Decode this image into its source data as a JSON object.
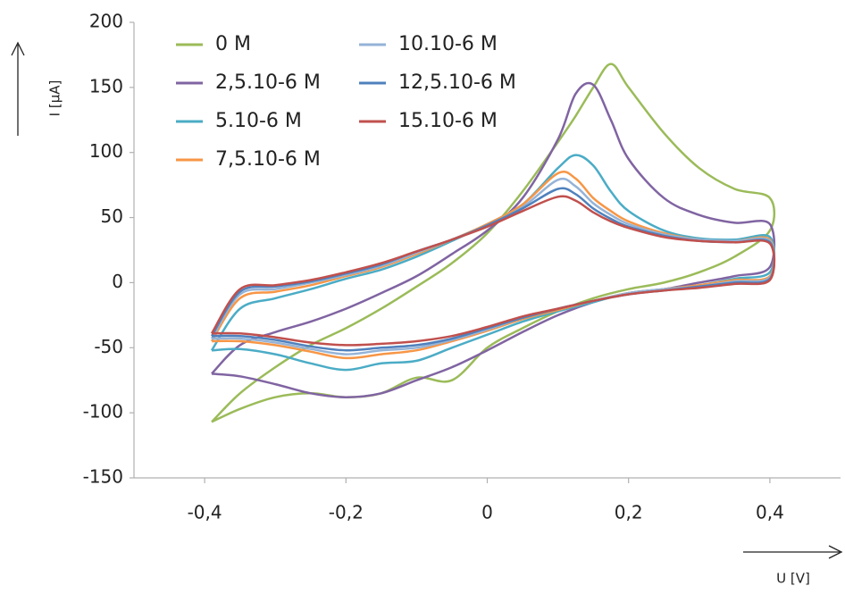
{
  "chart_data": {
    "type": "line",
    "x_label": "U [V]",
    "y_label": "I [μA]",
    "xlim": [
      -0.5,
      0.5
    ],
    "ylim": [
      -150,
      200
    ],
    "xticks": [
      {
        "value": -0.4,
        "label": "-0,4"
      },
      {
        "value": -0.2,
        "label": "-0,2"
      },
      0,
      {
        "value": 0.2,
        "label": "0,2"
      },
      {
        "value": 0.4,
        "label": "0,4"
      }
    ],
    "yticks": [
      -150,
      -100,
      -50,
      0,
      50,
      100,
      150,
      200
    ],
    "grid": false,
    "legend": "upper left",
    "x": [
      -0.39,
      -0.35,
      -0.3,
      -0.25,
      -0.2,
      -0.15,
      -0.1,
      -0.05,
      0,
      0.05,
      0.1,
      0.125,
      0.15,
      0.175,
      0.2,
      0.25,
      0.3,
      0.35,
      0.4,
      0.4,
      0.35,
      0.3,
      0.25,
      0.2,
      0.15,
      0.1,
      0.05,
      0,
      -0.05,
      -0.1,
      -0.15,
      -0.2,
      -0.25,
      -0.3,
      -0.35,
      -0.39
    ],
    "series": [
      {
        "name": "0 M",
        "color": "#9bbb59",
        "values": [
          -107,
          -85,
          -65,
          -48,
          -35,
          -20,
          -3,
          15,
          38,
          70,
          108,
          128,
          150,
          168,
          150,
          115,
          88,
          72,
          65,
          40,
          20,
          8,
          0,
          -5,
          -12,
          -22,
          -35,
          -50,
          -75,
          -73,
          -85,
          -88,
          -85,
          -88,
          -97,
          -107
        ]
      },
      {
        "name": "2,5.10-6 M",
        "color": "#8064a2",
        "values": [
          -70,
          -48,
          -38,
          -30,
          -20,
          -8,
          5,
          22,
          40,
          65,
          110,
          145,
          152,
          125,
          95,
          65,
          52,
          46,
          45,
          12,
          5,
          0,
          -5,
          -8,
          -15,
          -25,
          -38,
          -52,
          -65,
          -75,
          -85,
          -88,
          -85,
          -78,
          -72,
          -70
        ]
      },
      {
        "name": "5.10-6 M",
        "color": "#4bacc6",
        "values": [
          -52,
          -20,
          -12,
          -5,
          3,
          10,
          20,
          32,
          45,
          60,
          88,
          98,
          90,
          70,
          55,
          40,
          34,
          33,
          35,
          8,
          3,
          -2,
          -5,
          -8,
          -15,
          -22,
          -30,
          -40,
          -50,
          -60,
          -62,
          -67,
          -62,
          -55,
          -51,
          -52
        ]
      },
      {
        "name": "7,5.10-6 M",
        "color": "#f79646",
        "values": [
          -45,
          -12,
          -7,
          -2,
          5,
          12,
          22,
          33,
          45,
          60,
          84,
          80,
          65,
          55,
          47,
          38,
          33,
          32,
          33,
          5,
          2,
          -2,
          -5,
          -8,
          -14,
          -21,
          -28,
          -37,
          -45,
          -52,
          -55,
          -58,
          -53,
          -48,
          -45,
          -45
        ]
      },
      {
        "name": "10.10-6 M",
        "color": "#95b3d7",
        "values": [
          -43,
          -9,
          -5,
          0,
          6,
          13,
          23,
          33,
          44,
          58,
          79,
          74,
          61,
          52,
          45,
          37,
          33,
          32,
          32,
          4,
          1,
          -3,
          -5,
          -8,
          -14,
          -20,
          -27,
          -36,
          -44,
          -50,
          -52,
          -55,
          -51,
          -46,
          -43,
          -43
        ]
      },
      {
        "name": "12,5.10-6 M",
        "color": "#4f81bd",
        "values": [
          -41,
          -7,
          -3,
          1,
          7,
          14,
          24,
          33,
          44,
          57,
          72,
          68,
          57,
          49,
          43,
          36,
          32,
          31,
          31,
          3,
          0,
          -3,
          -6,
          -9,
          -14,
          -20,
          -27,
          -35,
          -43,
          -48,
          -50,
          -52,
          -49,
          -44,
          -41,
          -41
        ]
      },
      {
        "name": "15.10-6 M",
        "color": "#c0504d",
        "values": [
          -39,
          -5,
          -2,
          2,
          8,
          15,
          24,
          33,
          43,
          55,
          66,
          63,
          54,
          47,
          42,
          35,
          32,
          31,
          30,
          2,
          -1,
          -4,
          -6,
          -9,
          -14,
          -20,
          -26,
          -34,
          -41,
          -45,
          -47,
          -48,
          -46,
          -42,
          -39,
          -39
        ]
      }
    ]
  }
}
